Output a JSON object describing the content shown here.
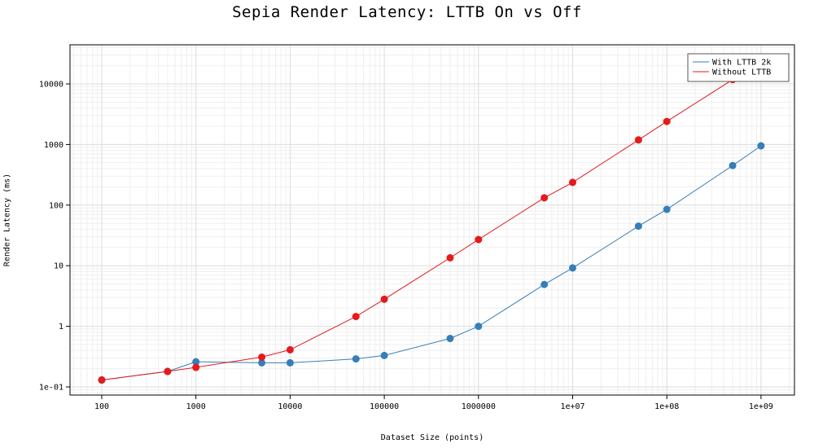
{
  "chart_data": {
    "type": "line",
    "title": "Sepia Render Latency: LTTB On vs Off",
    "xlabel": "Dataset Size (points)",
    "ylabel": "Render Latency (ms)",
    "xscale": "log",
    "yscale": "log",
    "xlim": [
      100,
      1000000000
    ],
    "ylim": [
      0.1,
      10000
    ],
    "grid": true,
    "legend_position": "top-right",
    "x_ticks": [
      {
        "value": 100,
        "label": "100"
      },
      {
        "value": 1000,
        "label": "1000"
      },
      {
        "value": 10000,
        "label": "10000"
      },
      {
        "value": 100000,
        "label": "100000"
      },
      {
        "value": 1000000,
        "label": "1000000"
      },
      {
        "value": 10000000,
        "label": "1e+07"
      },
      {
        "value": 100000000,
        "label": "1e+08"
      },
      {
        "value": 1000000000,
        "label": "1e+09"
      }
    ],
    "y_ticks": [
      {
        "value": 0.1,
        "label": "1e-01"
      },
      {
        "value": 1,
        "label": "1"
      },
      {
        "value": 10,
        "label": "10"
      },
      {
        "value": 100,
        "label": "100"
      },
      {
        "value": 1000,
        "label": "1000"
      },
      {
        "value": 10000,
        "label": "10000"
      }
    ],
    "series": [
      {
        "name": "With LTTB 2k",
        "color": "#377eb8",
        "x": [
          100,
          500,
          1000,
          5000,
          10000,
          50000,
          100000,
          500000,
          1000000,
          5000000,
          10000000,
          50000000,
          100000000,
          500000000,
          1000000000
        ],
        "y": [
          0.13,
          0.18,
          0.26,
          0.25,
          0.25,
          0.29,
          0.33,
          0.63,
          1.0,
          4.9,
          9.2,
          45,
          85,
          450,
          950
        ]
      },
      {
        "name": "Without LTTB",
        "color": "#e41a1c",
        "x": [
          100,
          500,
          1000,
          5000,
          10000,
          50000,
          100000,
          500000,
          1000000,
          5000000,
          10000000,
          50000000,
          100000000,
          500000000
        ],
        "y": [
          0.13,
          0.18,
          0.21,
          0.31,
          0.41,
          1.45,
          2.8,
          13.5,
          27,
          132,
          237,
          1190,
          2400,
          11800
        ]
      }
    ]
  }
}
